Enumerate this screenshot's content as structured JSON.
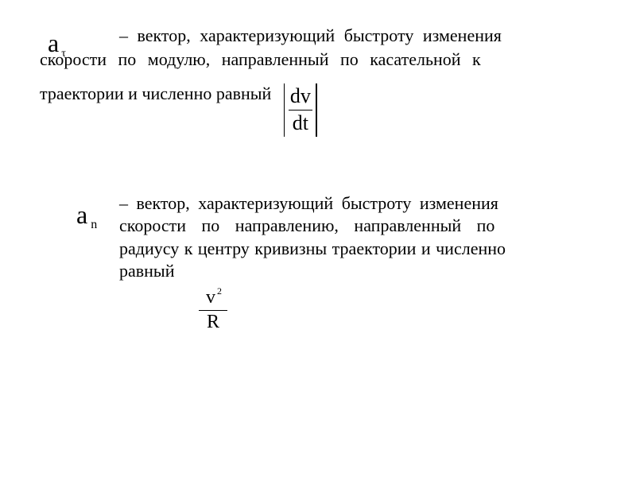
{
  "colors": {
    "background": "#ffffff",
    "text": "#000000",
    "rule": "#000000"
  },
  "typography": {
    "body_family": "Times New Roman",
    "body_size_pt": 17,
    "symbol_size_pt": 24,
    "sub_size_pt": 12,
    "formula_size_pt": 20
  },
  "tangential": {
    "symbol_base": "a",
    "symbol_sub": "τ",
    "text_line1": "–   вектор,  характеризующий  быстроту  изменения",
    "text_line2": "скорости   по   модулю,   направленный   по   касательной   к",
    "text_line3": "траектории и численно равный",
    "formula": {
      "numerator": "dv",
      "denominator": "dt",
      "absolute_bars": true
    }
  },
  "normal": {
    "symbol_base": "a",
    "symbol_sub": "n",
    "text_line1": "–  вектор,  характеризующий  быстроту  изменения",
    "text_line2": "скорости    по    направлению,    направленный    по",
    "text_line3": "радиусу к центру кривизны траектории и численно",
    "text_line4": "равный",
    "formula": {
      "numerator_base": "v",
      "numerator_exp": "2",
      "denominator": "R"
    }
  }
}
